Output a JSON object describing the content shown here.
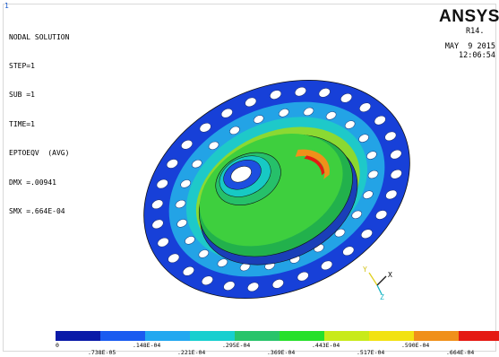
{
  "window_index": "1",
  "info": {
    "title": "NODAL SOLUTION",
    "lines": [
      "STEP=1",
      "SUB =1",
      "TIME=1",
      "EPTOEQV  (AVG)",
      "DMX =.00941",
      "SMX =.664E-04"
    ]
  },
  "brand": {
    "name": "ANSYS",
    "release": "R14."
  },
  "timestamp": {
    "date": "MAY  9 2015",
    "time": "12:06:54"
  },
  "triad": {
    "x": "X",
    "y": "Y",
    "z": "Z"
  },
  "legend": {
    "colors": [
      "#0a1aa8",
      "#1a5bf0",
      "#22a8f0",
      "#17cfcf",
      "#28c46a",
      "#26e02a",
      "#c8ea1a",
      "#f2e211",
      "#f0901a",
      "#e51a13"
    ],
    "labels_top": [
      "0",
      ".148E-04",
      ".295E-04",
      ".443E-04",
      ".590E-04"
    ],
    "labels_bottom": [
      ".738E-05",
      ".221E-04",
      ".369E-04",
      ".517E-04",
      ".664E-04"
    ]
  }
}
